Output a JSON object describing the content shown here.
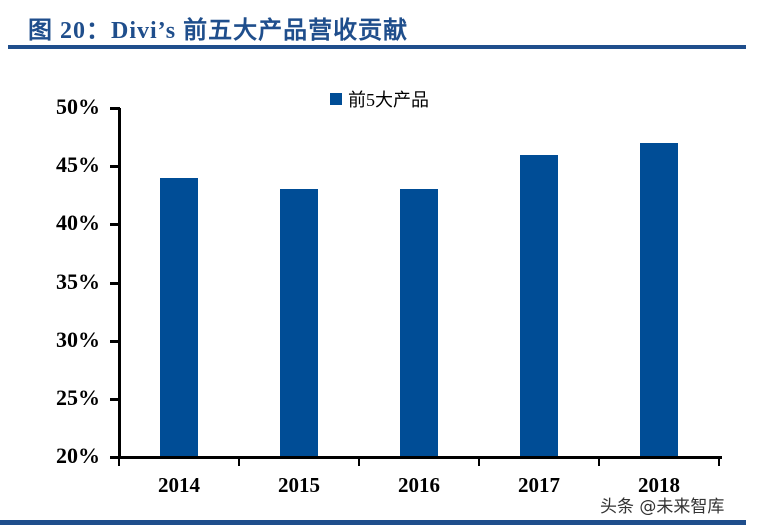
{
  "header": {
    "title": "图 20：Divi’s 前五大产品营收贡献"
  },
  "legend": {
    "label": "前5大产品",
    "color": "#004d96"
  },
  "watermark": "头条 @未来智库",
  "colors": {
    "bar": "#004d96",
    "title": "#1f4e8c",
    "rule": "#1f4e8c"
  },
  "y_ticks": [
    "50%",
    "45%",
    "40%",
    "35%",
    "30%",
    "25%",
    "20%"
  ],
  "x_ticks": [
    "2014",
    "2015",
    "2016",
    "2017",
    "2018"
  ],
  "chart_data": {
    "type": "bar",
    "title": "图 20：Divi’s 前五大产品营收贡献",
    "categories": [
      "2014",
      "2015",
      "2016",
      "2017",
      "2018"
    ],
    "series": [
      {
        "name": "前5大产品",
        "values": [
          44,
          43,
          43,
          46,
          47
        ]
      }
    ],
    "values": [
      44,
      43,
      43,
      46,
      47
    ],
    "xlabel": "",
    "ylabel": "",
    "ylim": [
      20,
      50
    ],
    "yticks": [
      "20%",
      "25%",
      "30%",
      "35%",
      "40%",
      "45%",
      "50%"
    ],
    "unit": "%",
    "grid": false,
    "legend_position": "top"
  }
}
